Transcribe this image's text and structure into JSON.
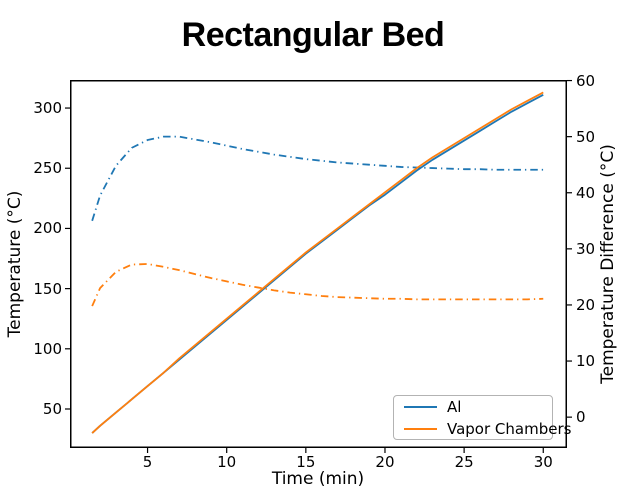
{
  "title": "Rectangular Bed",
  "legend": {
    "items": [
      {
        "label": "Al",
        "color": "#1f77b4"
      },
      {
        "label": "Vapor Chambers",
        "color": "#ff7f0e"
      }
    ]
  },
  "chart_data": {
    "type": "line",
    "title": "Rectangular Bed",
    "xlabel": "Time (min)",
    "ylabel_left": "Temperature (°C)",
    "ylabel_right": "Temperature Difference (°C)",
    "xlim": [
      0.1,
      31.5
    ],
    "ylim_left": [
      17.6,
      323.3
    ],
    "ylim_right": [
      -5.5,
      60.1
    ],
    "xticks": [
      5,
      10,
      15,
      20,
      25,
      30
    ],
    "yticks_left": [
      50,
      100,
      150,
      200,
      250,
      300
    ],
    "yticks_right": [
      0,
      10,
      20,
      30,
      40,
      50,
      60
    ],
    "grid": false,
    "legend_position": "lower right",
    "colors": {
      "al": "#1f77b4",
      "vapor_chambers": "#ff7f0e"
    },
    "x": [
      1.5,
      2,
      3,
      4,
      5,
      6,
      7,
      8,
      9,
      10,
      11,
      12,
      13,
      14,
      15,
      16,
      17,
      18,
      19,
      20,
      21,
      22,
      23,
      24,
      25,
      26,
      27,
      28,
      29,
      30
    ],
    "series": [
      {
        "name": "Al temperature difference",
        "axis": "right",
        "color": "#1f77b4",
        "style": "dashdot",
        "values": [
          35,
          39.5,
          44.8,
          48,
          49.4,
          50,
          50,
          49.5,
          49,
          48.4,
          47.8,
          47.3,
          46.8,
          46.4,
          46,
          45.7,
          45.4,
          45.2,
          45,
          44.8,
          44.6,
          44.5,
          44.4,
          44.3,
          44.2,
          44.2,
          44.1,
          44.1,
          44.1,
          44.1
        ]
      },
      {
        "name": "Vapor Chambers temperature difference",
        "axis": "right",
        "color": "#ff7f0e",
        "style": "dashdot",
        "values": [
          19.8,
          23,
          25.9,
          27.2,
          27.3,
          26.8,
          26.2,
          25.5,
          24.8,
          24.2,
          23.6,
          23.1,
          22.6,
          22.2,
          21.9,
          21.6,
          21.4,
          21.3,
          21.2,
          21.1,
          21.1,
          21,
          21,
          21,
          21,
          21,
          21,
          21,
          21,
          21.1
        ]
      },
      {
        "name": "Al temperature",
        "axis": "left",
        "color": "#1f77b4",
        "style": "solid",
        "values": [
          30,
          36,
          47,
          58,
          69,
          80,
          91,
          102,
          113,
          124,
          135,
          146,
          157,
          168,
          179,
          189,
          199,
          209,
          219,
          228,
          238,
          248,
          257,
          265,
          273,
          281,
          289,
          297,
          304,
          311
        ]
      },
      {
        "name": "Vapor Chambers temperature",
        "axis": "left",
        "color": "#ff7f0e",
        "style": "solid",
        "values": [
          30,
          36,
          47,
          58,
          69,
          80,
          92,
          103,
          114,
          125,
          136,
          147,
          158,
          169,
          180,
          190,
          200,
          210,
          220,
          230,
          240,
          250,
          259,
          267,
          275,
          283,
          291,
          299,
          306,
          313
        ]
      }
    ]
  }
}
